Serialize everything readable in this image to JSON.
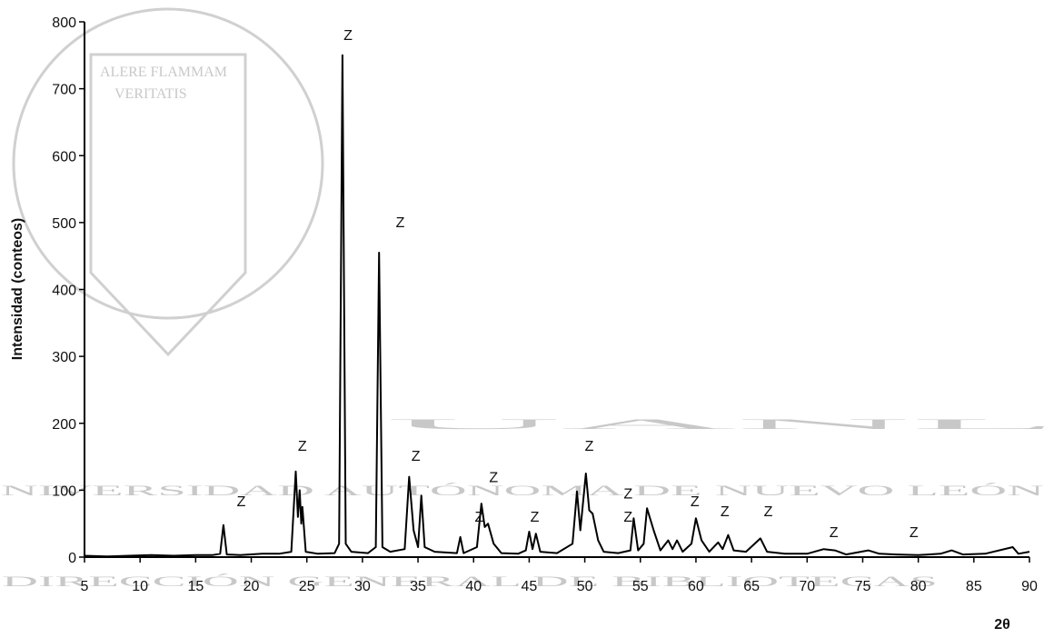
{
  "chart_data": {
    "type": "line",
    "ylabel": "Intensidad (conteos)",
    "xlabel": "2θ",
    "xlim": [
      5,
      90
    ],
    "xticks": [
      5,
      10,
      15,
      20,
      25,
      30,
      35,
      40,
      45,
      50,
      55,
      60,
      65,
      70,
      75,
      80,
      85,
      90
    ],
    "ylim": [
      0,
      800
    ],
    "yticks": [
      0,
      100,
      200,
      300,
      400,
      500,
      600,
      700,
      800
    ],
    "x": [
      5,
      7,
      9,
      11,
      13,
      15,
      16.5,
      17.2,
      17.5,
      17.8,
      19,
      21,
      22.5,
      23.6,
      24.0,
      24.2,
      24.35,
      24.5,
      24.6,
      24.9,
      26,
      27.5,
      27.9,
      28.2,
      28.5,
      29,
      30.5,
      31.2,
      31.5,
      31.8,
      32.5,
      33.8,
      34.2,
      34.6,
      35.0,
      35.3,
      35.6,
      36.5,
      38.5,
      38.8,
      39.1,
      40.3,
      40.7,
      41.0,
      41.3,
      41.8,
      42.5,
      44,
      44.7,
      45.0,
      45.3,
      45.6,
      46,
      47.5,
      48.9,
      49.3,
      49.6,
      50.1,
      50.4,
      50.7,
      51.2,
      51.7,
      53,
      54.1,
      54.4,
      54.8,
      55.3,
      55.6,
      56.2,
      56.8,
      57.5,
      57.9,
      58.3,
      58.8,
      59.6,
      60.0,
      60.5,
      61.2,
      62,
      62.4,
      62.9,
      63.4,
      64.5,
      65.8,
      66.4,
      68,
      70,
      71.5,
      72.5,
      73.5,
      75.5,
      76.5,
      78,
      80,
      82,
      83,
      84,
      86,
      88.5,
      89,
      90
    ],
    "series": [
      {
        "color": "#000000",
        "values": [
          2,
          1,
          2,
          3,
          2,
          3,
          3,
          5,
          48,
          4,
          3,
          5,
          5,
          8,
          128,
          60,
          100,
          50,
          75,
          8,
          5,
          6,
          20,
          750,
          20,
          8,
          6,
          15,
          455,
          15,
          8,
          12,
          120,
          40,
          15,
          92,
          15,
          8,
          6,
          30,
          6,
          15,
          80,
          45,
          50,
          20,
          6,
          5,
          10,
          38,
          12,
          35,
          8,
          6,
          20,
          98,
          40,
          125,
          70,
          65,
          25,
          8,
          6,
          10,
          58,
          10,
          20,
          73,
          40,
          10,
          25,
          12,
          25,
          8,
          20,
          58,
          25,
          8,
          22,
          12,
          33,
          10,
          8,
          28,
          8,
          5,
          5,
          12,
          10,
          4,
          10,
          5,
          4,
          3,
          5,
          10,
          4,
          5,
          15,
          5,
          8
        ]
      }
    ],
    "annotations": [
      {
        "text": "Z",
        "x": 28.7,
        "y": 781
      },
      {
        "text": "Z",
        "x": 33.4,
        "y": 501
      },
      {
        "text": "Z",
        "x": 24.6,
        "y": 167
      },
      {
        "text": "Z",
        "x": 19.1,
        "y": 84
      },
      {
        "text": "Z",
        "x": 34.8,
        "y": 152
      },
      {
        "text": "Z",
        "x": 41.8,
        "y": 120
      },
      {
        "text": "Z",
        "x": 40.5,
        "y": 61
      },
      {
        "text": "Z",
        "x": 45.5,
        "y": 61
      },
      {
        "text": "Z",
        "x": 50.4,
        "y": 167
      },
      {
        "text": "Z",
        "x": 53.9,
        "y": 96
      },
      {
        "text": "Z",
        "x": 53.9,
        "y": 61
      },
      {
        "text": "Z",
        "x": 59.9,
        "y": 84
      },
      {
        "text": "Z",
        "x": 62.6,
        "y": 69
      },
      {
        "text": "Z",
        "x": 66.5,
        "y": 69
      },
      {
        "text": "Z",
        "x": 72.4,
        "y": 38
      },
      {
        "text": "Z",
        "x": 79.6,
        "y": 38
      }
    ],
    "watermark": [
      "UANL",
      "UNIVERSIDAD AUTÓNOMA DE NUEVO LEÓN",
      "DIRECCIÓN GENERAL DE BIBLIOTECAS",
      "ALERE FLAMMAM",
      "VERITATIS"
    ]
  }
}
